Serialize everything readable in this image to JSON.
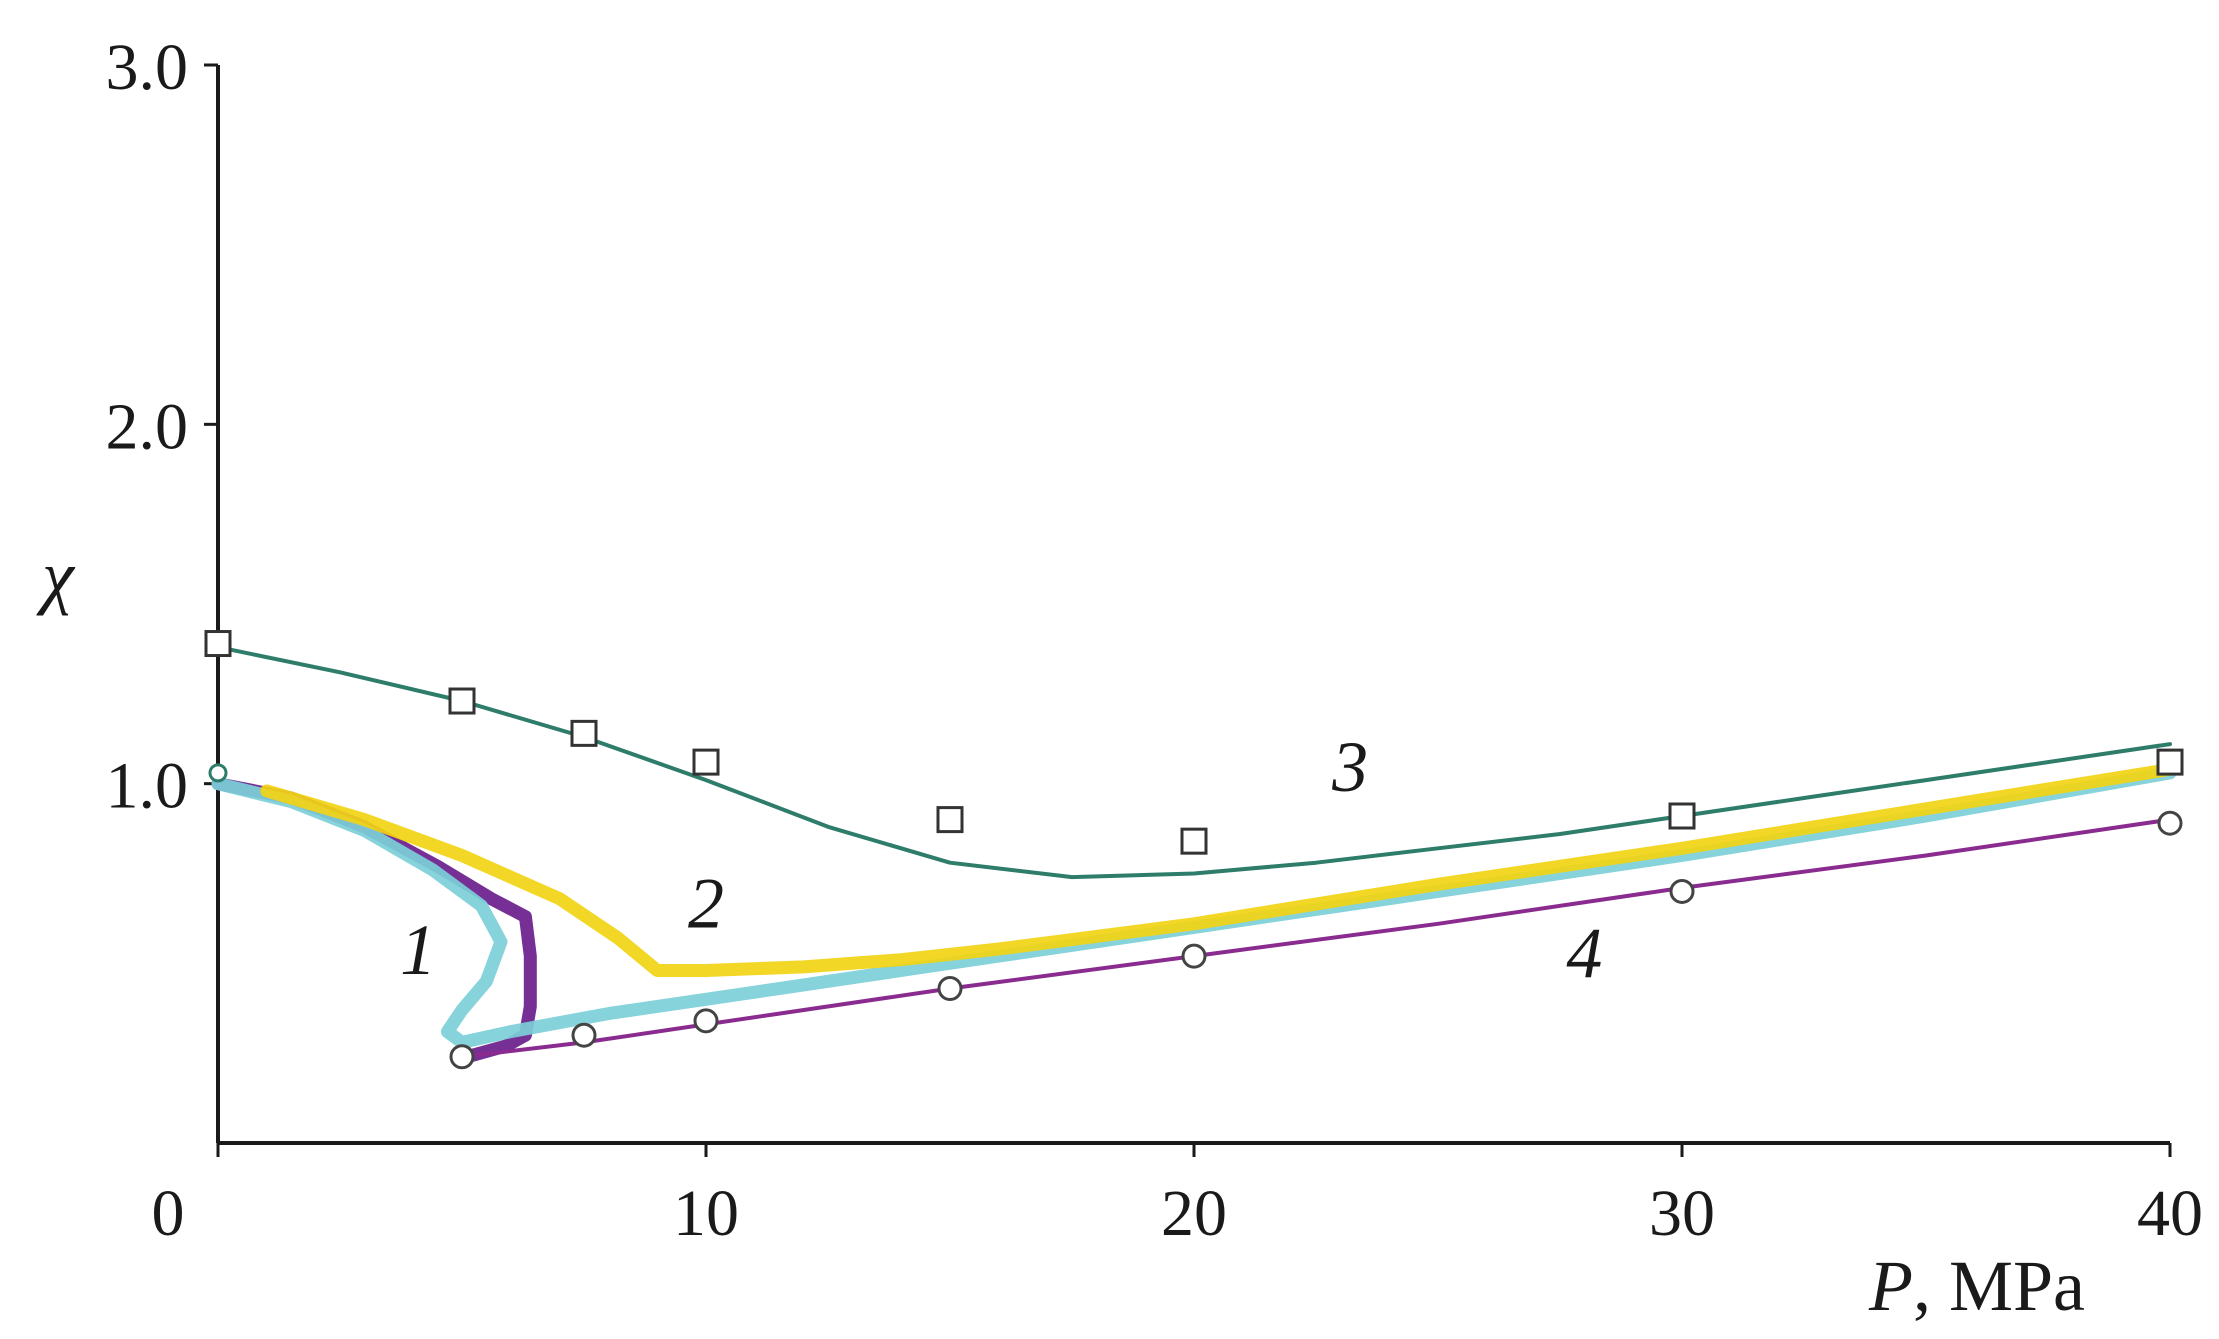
{
  "chart_data": {
    "type": "line",
    "title": "",
    "xlabel": "",
    "xlabel_var": "P",
    "xlabel_rest": ", MPa",
    "ylabel": "χ",
    "xlim": [
      0,
      40
    ],
    "ylim": [
      0,
      3.0
    ],
    "xticks": [
      {
        "value": 0,
        "label": "0"
      },
      {
        "value": 10,
        "label": "10"
      },
      {
        "value": 20,
        "label": "20"
      },
      {
        "value": 30,
        "label": "30"
      },
      {
        "value": 40,
        "label": "40"
      }
    ],
    "yticks": [
      {
        "value": 1.0,
        "label": "1.0"
      },
      {
        "value": 2.0,
        "label": "2.0"
      },
      {
        "value": 3.0,
        "label": "3.0"
      }
    ],
    "grid": false,
    "series": [
      {
        "id": "1",
        "label": "1",
        "label_at": [
          4.1,
          0.47
        ],
        "color": "#6a1d8c",
        "style": "thick",
        "x": [
          0.0,
          1.5,
          3.0,
          4.5,
          5.6,
          6.3,
          6.4,
          6.4,
          6.3,
          5.9,
          5.1
        ],
        "y": [
          1.0,
          0.96,
          0.88,
          0.77,
          0.68,
          0.63,
          0.52,
          0.38,
          0.3,
          0.27,
          0.24
        ]
      },
      {
        "id": "1-cyan",
        "label": "",
        "color": "#7ccfd8",
        "style": "thick",
        "x": [
          0.0,
          1.5,
          3.0,
          4.4,
          5.4,
          5.8,
          5.5,
          5.0,
          4.7,
          5.0,
          6.0,
          8.0,
          10.0,
          12.0,
          14.0,
          16.0,
          20.0,
          25.0,
          30.0,
          35.0,
          40.0
        ],
        "y": [
          1.0,
          0.95,
          0.87,
          0.76,
          0.66,
          0.56,
          0.45,
          0.37,
          0.31,
          0.28,
          0.31,
          0.36,
          0.4,
          0.44,
          0.48,
          0.52,
          0.6,
          0.7,
          0.8,
          0.91,
          1.03
        ]
      },
      {
        "id": "2",
        "label": "2",
        "label_at": [
          10.0,
          0.6
        ],
        "color": "#f2d413",
        "style": "thick",
        "x": [
          1.0,
          3.0,
          5.0,
          7.0,
          8.2,
          9.0,
          10.0,
          12.0,
          14.0,
          16.0,
          20.0,
          25.0,
          30.0,
          35.0,
          40.0
        ],
        "y": [
          0.98,
          0.9,
          0.8,
          0.68,
          0.57,
          0.48,
          0.48,
          0.49,
          0.51,
          0.54,
          0.61,
          0.72,
          0.82,
          0.93,
          1.04
        ]
      },
      {
        "id": "3",
        "label": "3",
        "label_at": [
          23.2,
          0.98
        ],
        "color": "#2e7d6a",
        "style": "thin",
        "x": [
          0.0,
          2.5,
          5.0,
          7.5,
          10.0,
          12.5,
          15.0,
          17.5,
          20.0,
          22.5,
          25.0,
          27.5,
          30.0,
          32.5,
          35.0,
          37.5,
          40.0
        ],
        "y": [
          1.38,
          1.31,
          1.23,
          1.13,
          1.01,
          0.88,
          0.78,
          0.74,
          0.75,
          0.78,
          0.82,
          0.86,
          0.91,
          0.96,
          1.01,
          1.06,
          1.11
        ],
        "markers": {
          "shape": "square",
          "x": [
            0.0,
            5.0,
            7.5,
            10.0,
            15.0,
            20.0,
            30.0,
            40.0
          ],
          "y": [
            1.39,
            1.23,
            1.14,
            1.06,
            0.9,
            0.84,
            0.91,
            1.06
          ]
        }
      },
      {
        "id": "4",
        "label": "4",
        "label_at": [
          28.0,
          0.46
        ],
        "color": "#8a2b8f",
        "style": "thin",
        "x": [
          5.0,
          7.5,
          10.0,
          15.0,
          20.0,
          25.0,
          30.0,
          35.0,
          40.0
        ],
        "y": [
          0.24,
          0.28,
          0.33,
          0.43,
          0.52,
          0.61,
          0.71,
          0.8,
          0.9
        ],
        "markers": {
          "shape": "circle",
          "x": [
            5.0,
            7.5,
            10.0,
            15.0,
            20.0,
            30.0,
            40.0
          ],
          "y": [
            0.24,
            0.3,
            0.34,
            0.43,
            0.52,
            0.7,
            0.89
          ]
        }
      }
    ],
    "extra_markers": [
      {
        "shape": "circle",
        "color": "#2e7d6a",
        "x": 0.0,
        "y": 1.03
      }
    ]
  }
}
